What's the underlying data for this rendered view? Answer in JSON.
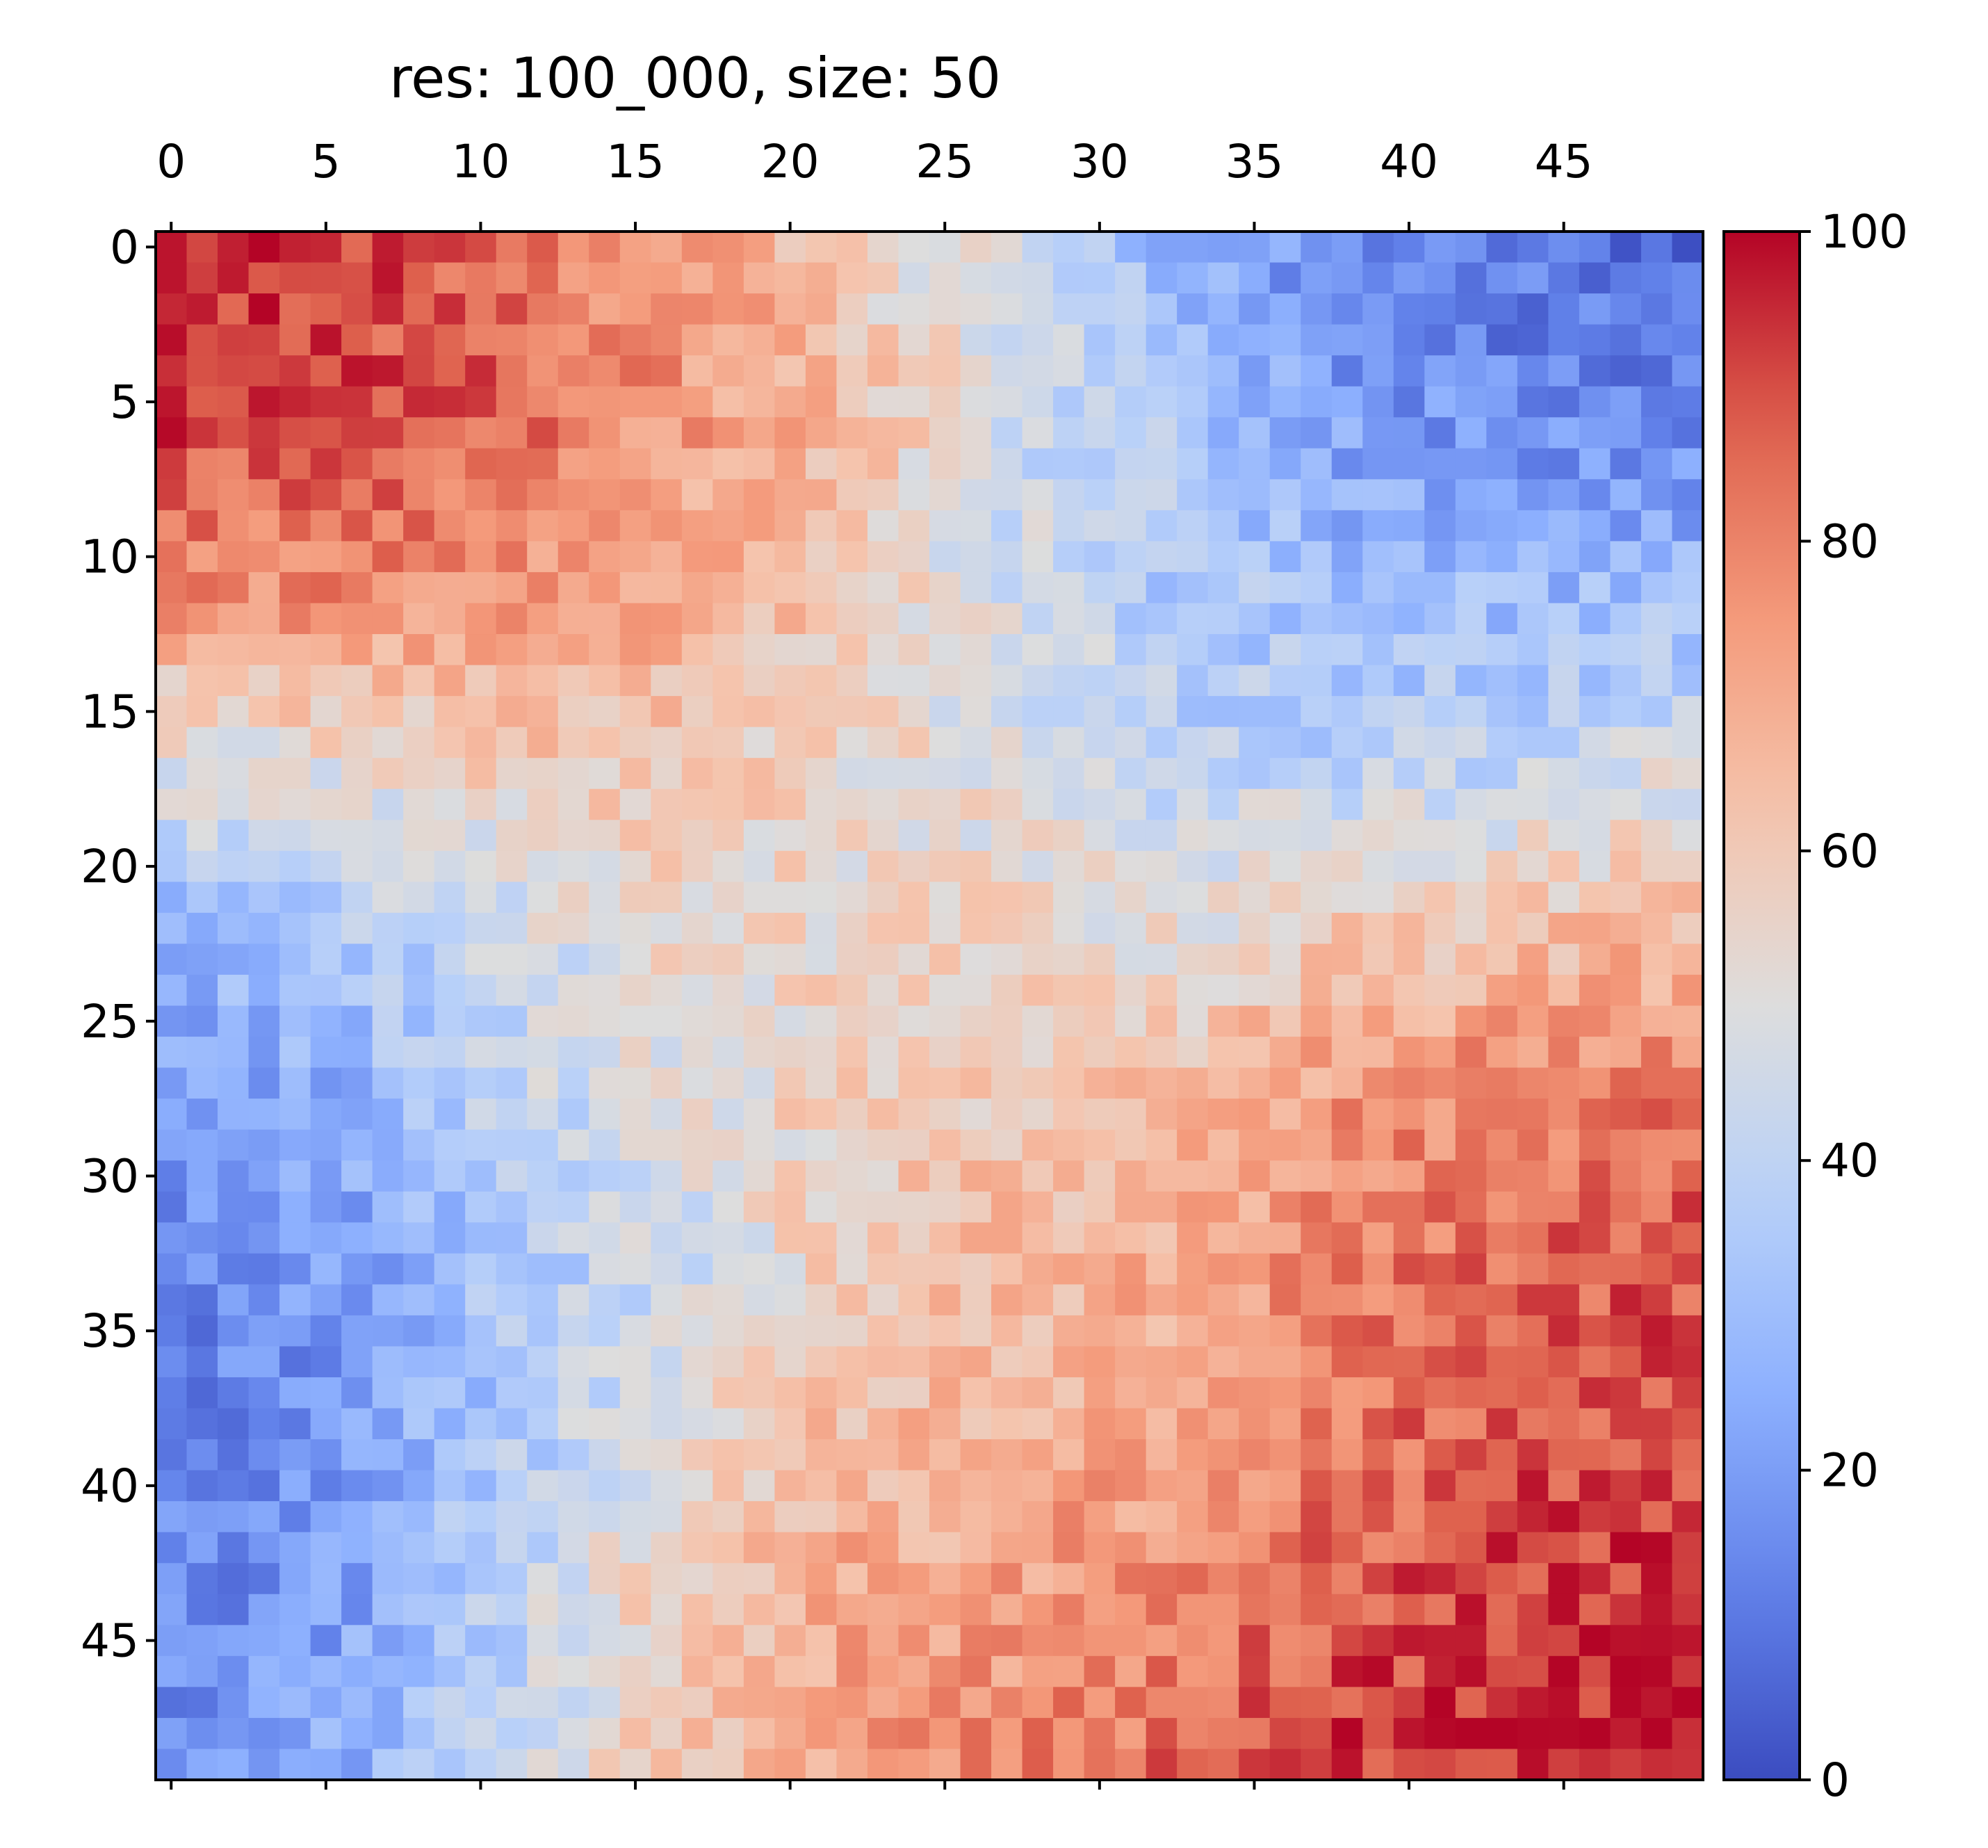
{
  "chart_data": {
    "type": "heatmap",
    "title": "res: 100_000, size: 50",
    "xlabel": "",
    "ylabel": "",
    "rows": 50,
    "cols": 50,
    "x_ticks": [
      "0",
      "5",
      "10",
      "15",
      "20",
      "25",
      "30",
      "35",
      "40",
      "45"
    ],
    "y_ticks": [
      "0",
      "5",
      "10",
      "15",
      "20",
      "25",
      "30",
      "35",
      "40",
      "45"
    ],
    "x_axis_position": "top",
    "colorbar": {
      "colormap": "coolwarm",
      "range": [
        0,
        100
      ],
      "ticks": [
        "0",
        "20",
        "40",
        "60",
        "80",
        "100"
      ]
    },
    "grid": false,
    "description_of_pattern": [
      [
        95,
        92,
        85,
        75,
        60,
        45,
        25,
        15,
        10,
        8
      ],
      [
        92,
        90,
        88,
        75,
        65,
        45,
        35,
        20,
        15,
        12
      ],
      [
        80,
        78,
        75,
        70,
        60,
        45,
        35,
        30,
        28,
        30
      ],
      [
        50,
        55,
        60,
        62,
        55,
        50,
        40,
        38,
        40,
        45
      ],
      [
        30,
        35,
        45,
        55,
        55,
        55,
        50,
        60,
        62,
        65
      ],
      [
        20,
        25,
        40,
        50,
        60,
        60,
        65,
        75,
        80,
        80
      ],
      [
        15,
        20,
        35,
        45,
        60,
        65,
        70,
        80,
        85,
        88
      ],
      [
        12,
        18,
        35,
        50,
        65,
        68,
        72,
        82,
        88,
        90
      ],
      [
        15,
        20,
        40,
        60,
        70,
        72,
        78,
        88,
        92,
        95
      ],
      [
        15,
        25,
        40,
        62,
        72,
        80,
        85,
        92,
        96,
        98
      ]
    ]
  }
}
